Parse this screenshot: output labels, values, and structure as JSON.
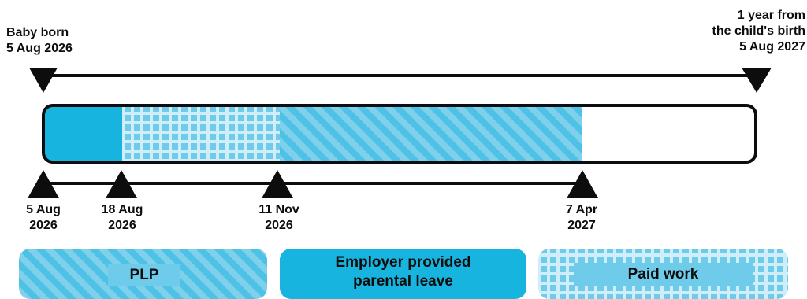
{
  "colors": {
    "solid": "#16b4df",
    "stripe_light": "#7fd0ea",
    "stripe_dark": "#4ec1e6",
    "grid_bg": "#cfeefa",
    "grid_square": "#6fcbea",
    "label_bg": "#6fcbea",
    "outline": "#0d0d0d"
  },
  "top_labels": {
    "left_line1": "Baby born",
    "left_line2": "5 Aug 2026",
    "right_line1": "1 year from",
    "right_line2": "the child's birth",
    "right_line3": "5 Aug 2027"
  },
  "markers": [
    {
      "line1": "5 Aug",
      "line2": "2026"
    },
    {
      "line1": "18 Aug",
      "line2": "2026"
    },
    {
      "line1": "11 Nov",
      "line2": "2026"
    },
    {
      "line1": "7 Apr",
      "line2": "2027"
    }
  ],
  "segments": [
    {
      "start": "2026-08-05",
      "end": "2026-08-18",
      "fill": "solid",
      "meaning": "Employer provided parental leave"
    },
    {
      "start": "2026-08-18",
      "end": "2026-11-11",
      "fill": "grid",
      "meaning": "Paid work"
    },
    {
      "start": "2026-11-11",
      "end": "2027-04-07",
      "fill": "stripes",
      "meaning": "PLP"
    }
  ],
  "legend": [
    {
      "label": "PLP",
      "fill": "stripes"
    },
    {
      "label_line1": "Employer provided",
      "label_line2": "parental leave",
      "fill": "solid"
    },
    {
      "label": "Paid work",
      "fill": "grid"
    }
  ]
}
